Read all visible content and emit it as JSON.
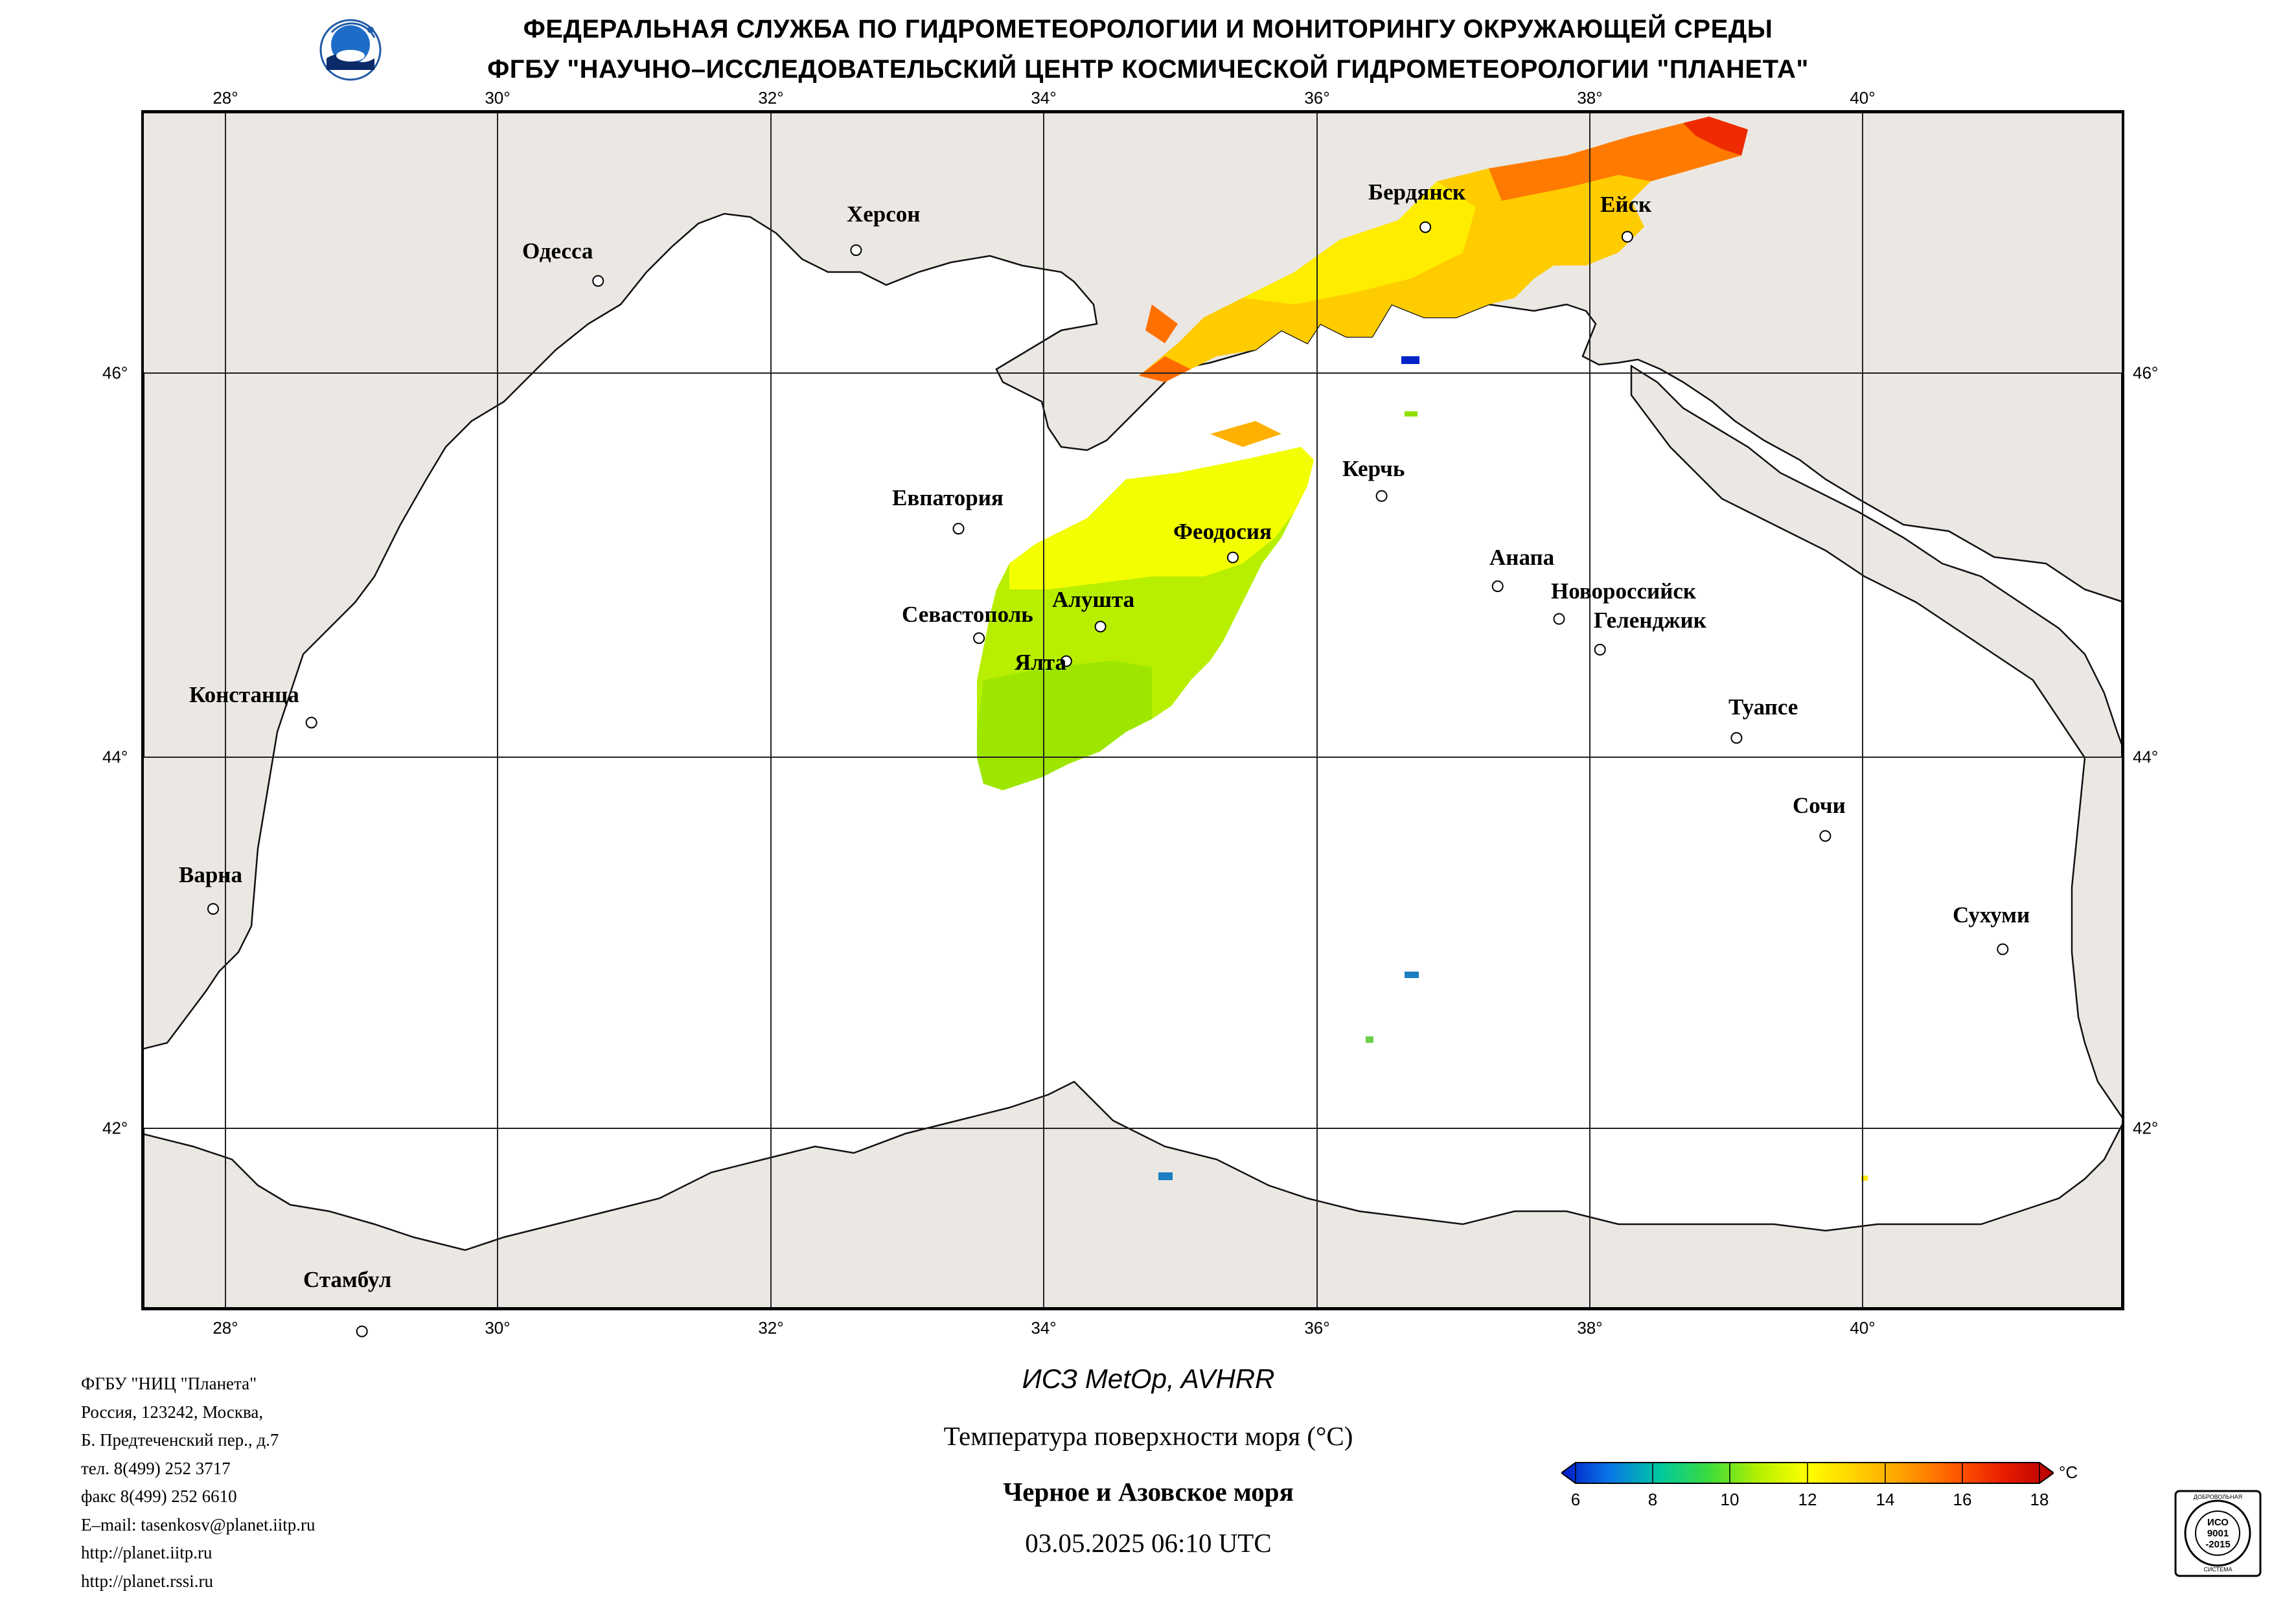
{
  "header": {
    "line1": "ФЕДЕРАЛЬНАЯ СЛУЖБА ПО ГИДРОМЕТЕОРОЛОГИИ И МОНИТОРИНГУ ОКРУЖАЮЩЕЙ СРЕДЫ",
    "line2": "ФГБУ \"НАУЧНО–ИССЛЕДОВАТЕЛЬСКИЙ ЦЕНТР КОСМИЧЕСКОЙ ГИДРОМЕТЕОРОЛОГИИ \"ПЛАНЕТА\"",
    "logo_icon": "planeta-logo-icon"
  },
  "map": {
    "longitude_ticks": [
      "28°",
      "30°",
      "32°",
      "34°",
      "36°",
      "38°",
      "40°"
    ],
    "latitude_ticks": [
      "46°",
      "44°",
      "42°"
    ],
    "cities": [
      {
        "name": "Одесса",
        "lon": 30.73,
        "lat": 46.48
      },
      {
        "name": "Херсон",
        "lon": 32.62,
        "lat": 46.64
      },
      {
        "name": "Бердянск",
        "lon": 36.79,
        "lat": 46.76
      },
      {
        "name": "Ейск",
        "lon": 38.27,
        "lat": 46.71
      },
      {
        "name": "Евпатория",
        "lon": 33.37,
        "lat": 45.19
      },
      {
        "name": "Керчь",
        "lon": 36.47,
        "lat": 45.36
      },
      {
        "name": "Феодосия",
        "lon": 35.38,
        "lat": 45.04
      },
      {
        "name": "Анапа",
        "lon": 37.32,
        "lat": 44.89
      },
      {
        "name": "Алушта",
        "lon": 34.41,
        "lat": 44.68
      },
      {
        "name": "Севастополь",
        "lon": 33.52,
        "lat": 44.62
      },
      {
        "name": "Новороссийск",
        "lon": 37.77,
        "lat": 44.72
      },
      {
        "name": "Геленджик",
        "lon": 38.07,
        "lat": 44.56
      },
      {
        "name": "Ялта",
        "lon": 34.16,
        "lat": 44.5
      },
      {
        "name": "Констанца",
        "lon": 28.63,
        "lat": 44.18
      },
      {
        "name": "Туапсе",
        "lon": 39.07,
        "lat": 44.1
      },
      {
        "name": "Сочи",
        "lon": 39.72,
        "lat": 43.59
      },
      {
        "name": "Варна",
        "lon": 27.91,
        "lat": 43.21
      },
      {
        "name": "Сухуми",
        "lon": 41.02,
        "lat": 43.0
      },
      {
        "name": "Стамбул",
        "lon": 29.0,
        "lat": 41.01
      }
    ]
  },
  "footer": {
    "org_lines": [
      "ФГБУ \"НИЦ \"Планета\"",
      "Россия, 123242, Москва,",
      "Б. Предтеченский пер., д.7",
      "тел. 8(499) 252 3717",
      "факс 8(499) 252 6610",
      "E–mail: tasenkosv@planet.iitp.ru",
      "http://planet.iitp.ru",
      "http://planet.rssi.ru"
    ],
    "satellite": "ИСЗ MetOp, AVHRR",
    "product": "Температура поверхности моря (°С)",
    "region": "Черное и Азовское моря",
    "datetime": "03.05.2025 06:10 UTC"
  },
  "colorbar": {
    "ticks": [
      "6",
      "8",
      "10",
      "12",
      "14",
      "16",
      "18"
    ],
    "unit": "°С",
    "colors": [
      "#0018c8",
      "#0a78e6",
      "#00c8a0",
      "#3cdc3c",
      "#b4f000",
      "#ffff00",
      "#ffd000",
      "#ff9c00",
      "#ff5a00",
      "#e81c00",
      "#b40000"
    ]
  },
  "badge": {
    "top_text": "ДОБРОВОЛЬНАЯ",
    "iso_lines": [
      "ИСО",
      "9001",
      "-2015"
    ],
    "bottom_text": "СИСТЕМА"
  }
}
